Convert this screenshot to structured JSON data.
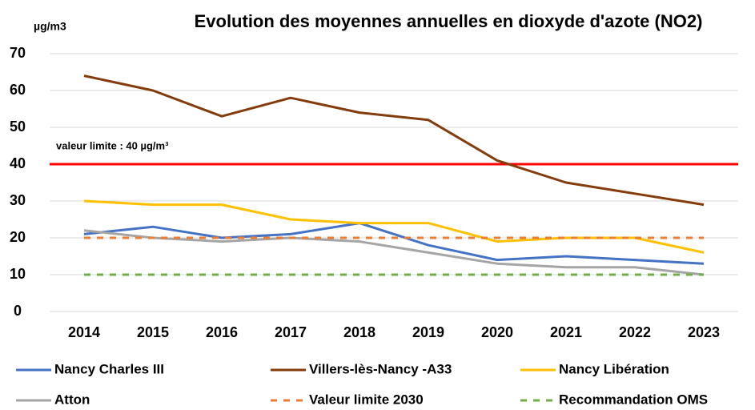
{
  "chart_data": {
    "type": "line",
    "title": "Evolution des moyennes annuelles en dioxyde d'azote (NO2)",
    "y_unit": "µg/m3",
    "categories": [
      "2014",
      "2015",
      "2016",
      "2017",
      "2018",
      "2019",
      "2020",
      "2021",
      "2022",
      "2023"
    ],
    "series": [
      {
        "name": "Nancy Charles III",
        "color": "#4472c4",
        "dash": false,
        "values": [
          21,
          23,
          20,
          21,
          24,
          18,
          14,
          15,
          14,
          13
        ]
      },
      {
        "name": "Villers-lès-Nancy -A33",
        "color": "#843c0c",
        "dash": false,
        "values": [
          64,
          60,
          53,
          58,
          54,
          52,
          41,
          35,
          32,
          29
        ]
      },
      {
        "name": "Nancy Libération",
        "color": "#ffc000",
        "dash": false,
        "values": [
          30,
          29,
          29,
          25,
          24,
          24,
          19,
          20,
          20,
          16
        ]
      },
      {
        "name": "Atton",
        "color": "#a5a5a5",
        "dash": false,
        "values": [
          22,
          20,
          19,
          20,
          19,
          16,
          13,
          12,
          12,
          10
        ]
      },
      {
        "name": "Valeur limite 2030",
        "color": "#ed7d31",
        "dash": true,
        "values": [
          20,
          20,
          20,
          20,
          20,
          20,
          20,
          20,
          20,
          20
        ]
      },
      {
        "name": "Recommandation OMS",
        "color": "#70ad47",
        "dash": true,
        "values": [
          10,
          10,
          10,
          10,
          10,
          10,
          10,
          10,
          10,
          10
        ]
      }
    ],
    "reference_line": {
      "value": 40,
      "label": "valeur limite : 40 µg/m³",
      "color": "#ff0000"
    },
    "ylim": [
      0,
      70
    ],
    "yticks": [
      0,
      10,
      20,
      30,
      40,
      50,
      60,
      70
    ],
    "grid": true
  }
}
